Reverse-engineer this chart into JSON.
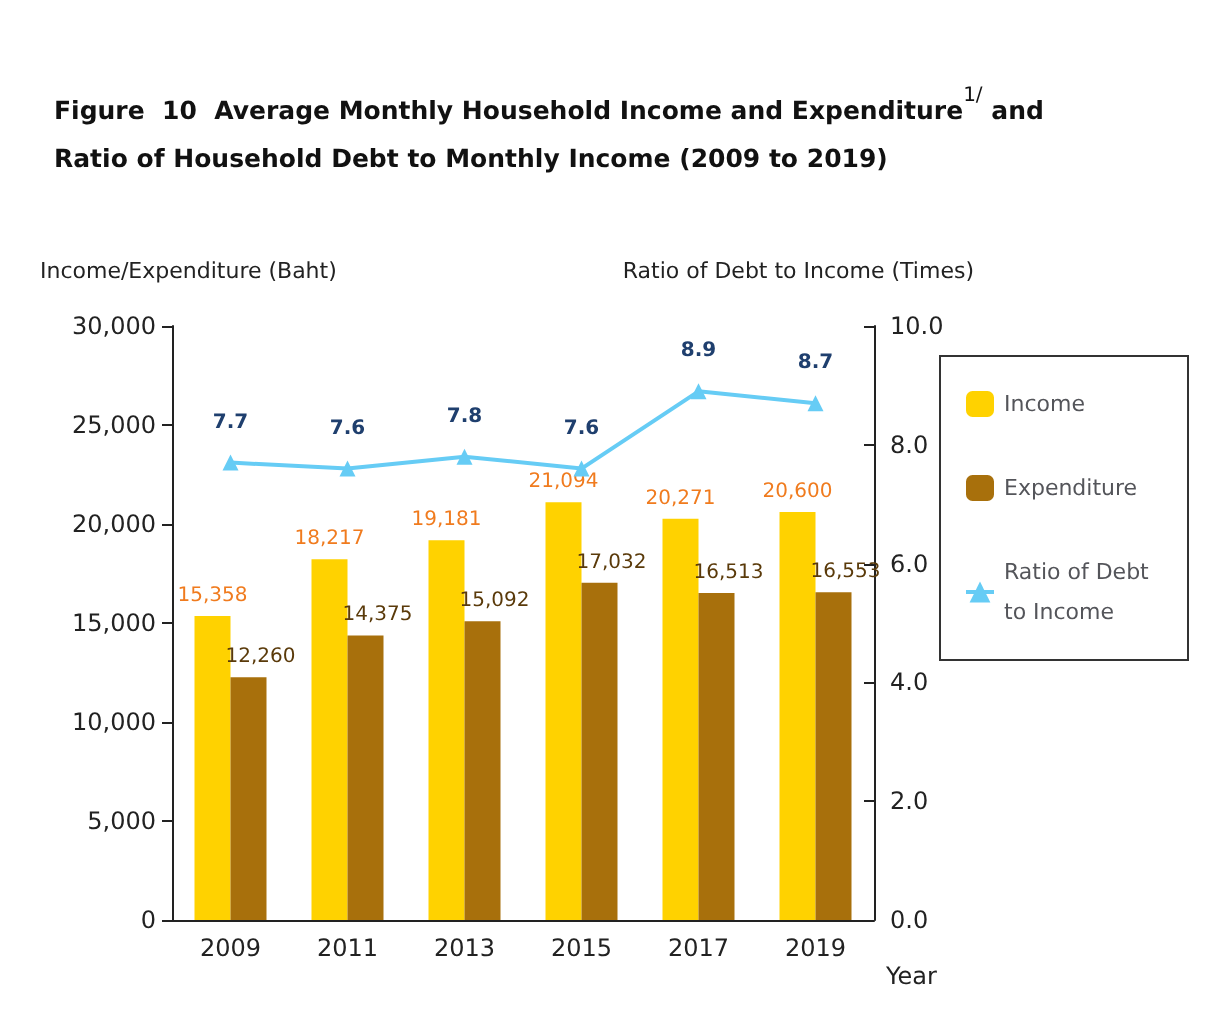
{
  "chart_data": {
    "type": "bar",
    "title": "Figure  10  Average Monthly Household Income and Expenditure$^{1/}$ and\nRatio of Household Debt to Monthly Income (2009 to 2019)",
    "xlabel": "Year",
    "ylabel": "Income/Expenditure (Baht)",
    "y2label": "Ratio of Debt to Income (Times)",
    "categories": [
      "2009",
      "2011",
      "2013",
      "2015",
      "2017",
      "2019"
    ],
    "series": [
      {
        "name": "Income",
        "color": "#ffd200",
        "values": [
          15358,
          18217,
          19181,
          21094,
          20271,
          20600
        ],
        "value_labels": [
          "15,358",
          "18,217",
          "19,181",
          "21,094",
          "20,271",
          "20,600"
        ]
      },
      {
        "name": "Expenditure",
        "color": "#a8700c",
        "values": [
          12260,
          14375,
          15092,
          17032,
          16513,
          16553
        ],
        "value_labels": [
          "12,260",
          "14,375",
          "15,092",
          "17,032",
          "16,513",
          "16,553"
        ]
      },
      {
        "name": "Ratio of Debt to Income",
        "type": "line",
        "axis": "y2",
        "color": "#66ccf5",
        "marker": "triangle",
        "line_style": "solid",
        "values": [
          7.7,
          7.6,
          7.8,
          7.6,
          8.9,
          8.7
        ],
        "value_labels": [
          "7.7",
          "7.6",
          "7.8",
          "7.6",
          "8.9",
          "8.7"
        ]
      }
    ],
    "ylim": [
      0,
      30000
    ],
    "yticks": [
      {
        "value": 0,
        "label": "0"
      },
      {
        "value": 5000,
        "label": "5,000"
      },
      {
        "value": 10000,
        "label": "10,000"
      },
      {
        "value": 15000,
        "label": "15,000"
      },
      {
        "value": 20000,
        "label": "20,000"
      },
      {
        "value": 25000,
        "label": "25,000"
      },
      {
        "value": 30000,
        "label": "30,000"
      }
    ],
    "y2lim": [
      0,
      10
    ],
    "y2ticks": [
      {
        "value": 0,
        "label": "0.0"
      },
      {
        "value": 2,
        "label": "2.0"
      },
      {
        "value": 4,
        "label": "4.0"
      },
      {
        "value": 6,
        "label": "6.0"
      },
      {
        "value": 8,
        "label": "8.0"
      },
      {
        "value": 10,
        "label": "10.0"
      }
    ],
    "grid": false,
    "legend": "right"
  }
}
